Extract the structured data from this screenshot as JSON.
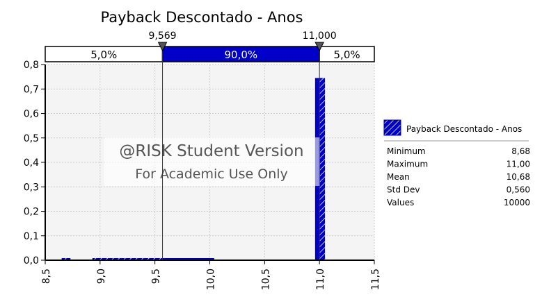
{
  "chart_data": {
    "type": "bar",
    "title": "Payback Descontado - Anos",
    "xlim": [
      8.5,
      11.5
    ],
    "ylim": [
      0,
      0.8
    ],
    "x_ticks": [
      "8,5",
      "9,0",
      "9,5",
      "10,0",
      "10,5",
      "11,0",
      "11,5"
    ],
    "x_tick_values": [
      8.5,
      9.0,
      9.5,
      10.0,
      10.5,
      11.0,
      11.5
    ],
    "y_ticks": [
      "0,0",
      "0,1",
      "0,2",
      "0,3",
      "0,4",
      "0,5",
      "0,6",
      "0,7",
      "0,8"
    ],
    "y_tick_values": [
      0,
      0.1,
      0.2,
      0.3,
      0.4,
      0.5,
      0.6,
      0.7,
      0.8
    ],
    "grid": true,
    "bins": [
      {
        "from": 8.65,
        "to": 8.73,
        "value": 0.004
      },
      {
        "from": 8.93,
        "to": 9.569,
        "value": 0.007
      },
      {
        "from": 9.569,
        "to": 10.04,
        "value": 0.008
      },
      {
        "from": 10.96,
        "to": 11.05,
        "value": 0.745
      }
    ],
    "delimiters": [
      {
        "value": 9.569,
        "label": "9,569"
      },
      {
        "value": 11.0,
        "label": "11,000"
      }
    ],
    "regions": [
      "5,0%",
      "90,0%",
      "5,0%"
    ],
    "watermark": [
      "@RISK Student Version",
      "For Academic Use Only"
    ],
    "legend": {
      "placement": "right",
      "series": "Payback Descontado - Anos",
      "stats": [
        {
          "label": "Minimum",
          "value": "8,68"
        },
        {
          "label": "Maximum",
          "value": "11,00"
        },
        {
          "label": "Mean",
          "value": "10,68"
        },
        {
          "label": "Std Dev",
          "value": "0,560"
        },
        {
          "label": "Values",
          "value": "10000"
        }
      ]
    },
    "colors": {
      "bar": "#0000c8",
      "plot_bg": "#f4f4f4",
      "grid": "#cccccc"
    }
  }
}
